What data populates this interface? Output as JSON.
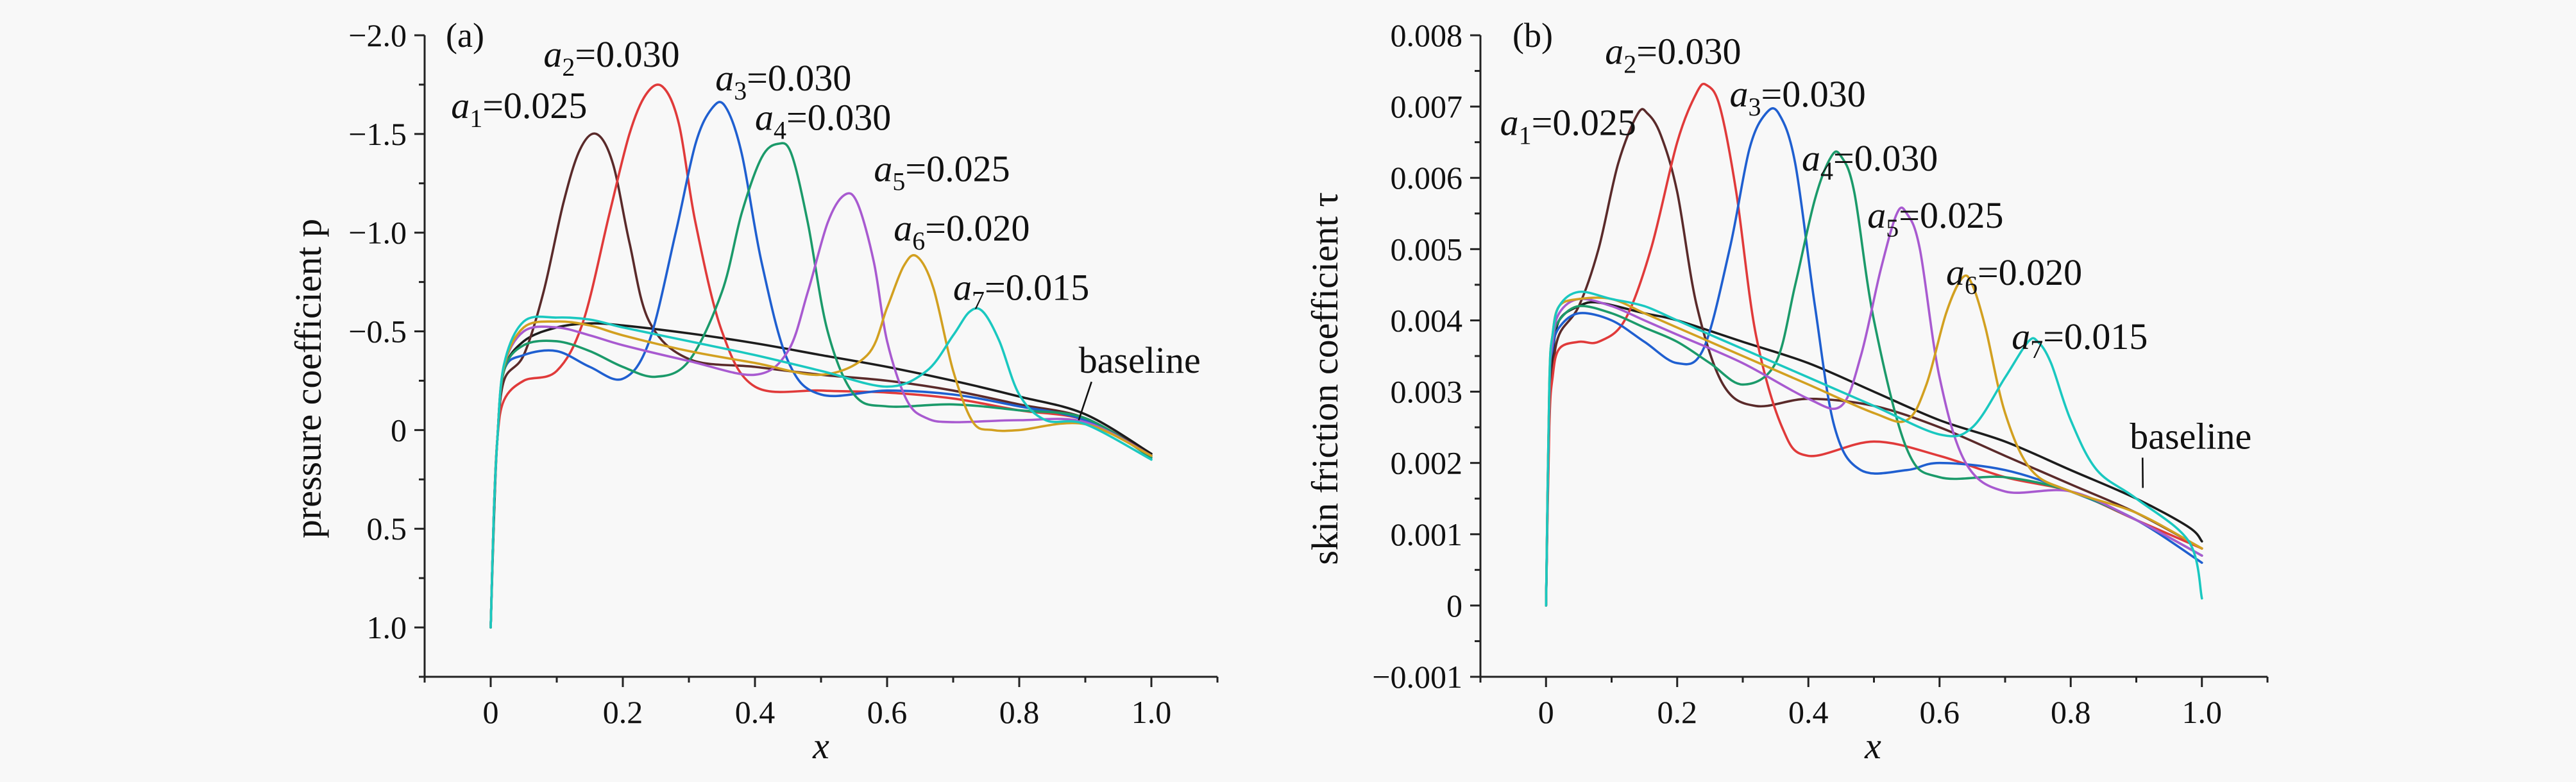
{
  "chart_data": [
    {
      "type": "line",
      "panel_label": "(a)",
      "xlabel": "x",
      "ylabel": "pressure coefficient p",
      "xlim": [
        -0.1,
        1.1
      ],
      "ylim": [
        1.25,
        -2.0
      ],
      "y_inverted": true,
      "xticks": [
        0,
        0.2,
        0.4,
        0.6,
        0.8,
        1.0
      ],
      "xtick_labels": [
        "0",
        "0.2",
        "0.4",
        "0.6",
        "0.8",
        "1.0"
      ],
      "yticks": [
        -2.0,
        -1.5,
        -1.0,
        -0.5,
        0,
        0.5,
        1.0
      ],
      "ytick_labels": [
        "−2.0",
        "−1.5",
        "−1.0",
        "−0.5",
        "0",
        "0.5",
        "1.0"
      ],
      "annotations": [
        {
          "var": "a",
          "sub": "1",
          "value": "=0.025",
          "x": -0.06,
          "y": -1.58
        },
        {
          "var": "a",
          "sub": "2",
          "value": "=0.030",
          "x": 0.08,
          "y": -1.84
        },
        {
          "var": "a",
          "sub": "3",
          "value": "=0.030",
          "x": 0.34,
          "y": -1.72
        },
        {
          "var": "a",
          "sub": "4",
          "value": "=0.030",
          "x": 0.4,
          "y": -1.52
        },
        {
          "var": "a",
          "sub": "5",
          "value": "=0.025",
          "x": 0.58,
          "y": -1.26
        },
        {
          "var": "a",
          "sub": "6",
          "value": "=0.020",
          "x": 0.61,
          "y": -0.96
        },
        {
          "var": "a",
          "sub": "7",
          "value": "=0.015",
          "x": 0.7,
          "y": -0.66
        },
        {
          "text": "baseline",
          "x": 0.89,
          "y": -0.29,
          "leader_to": [
            0.89,
            -0.05
          ]
        }
      ],
      "series": [
        {
          "color": "#1c1c1c",
          "x": [
            0,
            0.005,
            0.01,
            0.02,
            0.05,
            0.1,
            0.15,
            0.2,
            0.3,
            0.4,
            0.5,
            0.6,
            0.7,
            0.8,
            0.9,
            1.0
          ],
          "y": [
            1.0,
            0.45,
            0.05,
            -0.3,
            -0.45,
            -0.52,
            -0.54,
            -0.53,
            -0.49,
            -0.44,
            -0.38,
            -0.32,
            -0.25,
            -0.17,
            -0.08,
            0.12
          ]
        },
        {
          "color": "#5a2a2a",
          "x": [
            0,
            0.005,
            0.01,
            0.02,
            0.05,
            0.08,
            0.11,
            0.135,
            0.16,
            0.185,
            0.21,
            0.24,
            0.3,
            0.4,
            0.5,
            0.6,
            0.7,
            0.8,
            0.9,
            1.0
          ],
          "y": [
            1.0,
            0.4,
            0.05,
            -0.25,
            -0.38,
            -0.7,
            -1.15,
            -1.42,
            -1.5,
            -1.35,
            -0.95,
            -0.55,
            -0.36,
            -0.32,
            -0.28,
            -0.25,
            -0.2,
            -0.13,
            -0.06,
            0.13
          ]
        },
        {
          "color": "#e03a3a",
          "x": [
            0,
            0.005,
            0.01,
            0.02,
            0.05,
            0.1,
            0.14,
            0.18,
            0.21,
            0.235,
            0.26,
            0.285,
            0.31,
            0.35,
            0.4,
            0.5,
            0.6,
            0.7,
            0.8,
            0.9,
            1.0
          ],
          "y": [
            1.0,
            0.4,
            0.05,
            -0.15,
            -0.25,
            -0.3,
            -0.55,
            -1.1,
            -1.5,
            -1.7,
            -1.74,
            -1.55,
            -1.05,
            -0.5,
            -0.22,
            -0.2,
            -0.19,
            -0.16,
            -0.1,
            -0.05,
            0.13
          ]
        },
        {
          "color": "#1f5fd0",
          "x": [
            0,
            0.005,
            0.01,
            0.02,
            0.05,
            0.1,
            0.15,
            0.2,
            0.24,
            0.28,
            0.31,
            0.335,
            0.355,
            0.38,
            0.41,
            0.45,
            0.5,
            0.6,
            0.7,
            0.8,
            0.9,
            1.0
          ],
          "y": [
            1.0,
            0.4,
            0.05,
            -0.3,
            -0.38,
            -0.4,
            -0.32,
            -0.26,
            -0.45,
            -1.0,
            -1.45,
            -1.63,
            -1.64,
            -1.4,
            -0.85,
            -0.35,
            -0.18,
            -0.2,
            -0.18,
            -0.12,
            -0.05,
            0.13
          ]
        },
        {
          "color": "#1b9a6a",
          "x": [
            0,
            0.005,
            0.01,
            0.02,
            0.05,
            0.1,
            0.15,
            0.2,
            0.25,
            0.3,
            0.35,
            0.38,
            0.41,
            0.435,
            0.455,
            0.48,
            0.51,
            0.55,
            0.6,
            0.7,
            0.8,
            0.9,
            1.0
          ],
          "y": [
            1.0,
            0.4,
            0.05,
            -0.3,
            -0.43,
            -0.45,
            -0.4,
            -0.32,
            -0.27,
            -0.35,
            -0.7,
            -1.1,
            -1.38,
            -1.45,
            -1.4,
            -1.05,
            -0.5,
            -0.18,
            -0.12,
            -0.13,
            -0.1,
            -0.06,
            0.14
          ]
        },
        {
          "color": "#a85ad0",
          "x": [
            0,
            0.005,
            0.01,
            0.02,
            0.05,
            0.1,
            0.15,
            0.2,
            0.3,
            0.4,
            0.45,
            0.48,
            0.51,
            0.535,
            0.555,
            0.58,
            0.6,
            0.63,
            0.66,
            0.7,
            0.8,
            0.9,
            1.0
          ],
          "y": [
            1.0,
            0.4,
            0.05,
            -0.32,
            -0.5,
            -0.52,
            -0.48,
            -0.43,
            -0.35,
            -0.28,
            -0.4,
            -0.7,
            -1.05,
            -1.19,
            -1.15,
            -0.85,
            -0.45,
            -0.15,
            -0.06,
            -0.04,
            -0.05,
            -0.04,
            0.13
          ]
        },
        {
          "color": "#d2a020",
          "x": [
            0,
            0.005,
            0.01,
            0.02,
            0.05,
            0.1,
            0.15,
            0.2,
            0.3,
            0.4,
            0.5,
            0.57,
            0.6,
            0.625,
            0.645,
            0.67,
            0.7,
            0.73,
            0.76,
            0.8,
            0.9,
            1.0
          ],
          "y": [
            1.0,
            0.4,
            0.05,
            -0.32,
            -0.52,
            -0.55,
            -0.53,
            -0.48,
            -0.4,
            -0.34,
            -0.28,
            -0.38,
            -0.62,
            -0.83,
            -0.88,
            -0.72,
            -0.3,
            -0.04,
            0.0,
            0.0,
            -0.03,
            0.13
          ]
        },
        {
          "color": "#1ac8c0",
          "x": [
            0,
            0.005,
            0.01,
            0.02,
            0.05,
            0.1,
            0.15,
            0.2,
            0.3,
            0.4,
            0.5,
            0.6,
            0.66,
            0.7,
            0.725,
            0.745,
            0.77,
            0.8,
            0.84,
            0.9,
            1.0
          ],
          "y": [
            1.0,
            0.4,
            0.05,
            -0.33,
            -0.55,
            -0.57,
            -0.56,
            -0.52,
            -0.45,
            -0.38,
            -0.3,
            -0.22,
            -0.3,
            -0.48,
            -0.6,
            -0.6,
            -0.45,
            -0.18,
            -0.05,
            -0.03,
            0.15
          ]
        }
      ]
    },
    {
      "type": "line",
      "panel_label": "(b)",
      "xlabel": "x",
      "ylabel": "skin friction coefficient τ",
      "xlim": [
        -0.1,
        1.1
      ],
      "ylim": [
        -0.001,
        0.008
      ],
      "xticks": [
        0,
        0.2,
        0.4,
        0.6,
        0.8,
        1.0
      ],
      "xtick_labels": [
        "0",
        "0.2",
        "0.4",
        "0.6",
        "0.8",
        "1.0"
      ],
      "yticks": [
        -0.001,
        0,
        0.001,
        0.002,
        0.003,
        0.004,
        0.005,
        0.006,
        0.007,
        0.008
      ],
      "ytick_labels": [
        "−0.001",
        "0",
        "0.001",
        "0.002",
        "0.003",
        "0.004",
        "0.005",
        "0.006",
        "0.007",
        "0.008"
      ],
      "annotations": [
        {
          "var": "a",
          "sub": "1",
          "value": "=0.025",
          "x": -0.07,
          "y": 0.0066
        },
        {
          "var": "a",
          "sub": "2",
          "value": "=0.030",
          "x": 0.09,
          "y": 0.0076
        },
        {
          "var": "a",
          "sub": "3",
          "value": "=0.030",
          "x": 0.28,
          "y": 0.007
        },
        {
          "var": "a",
          "sub": "4",
          "value": "=0.030",
          "x": 0.39,
          "y": 0.0061
        },
        {
          "var": "a",
          "sub": "5",
          "value": "=0.025",
          "x": 0.49,
          "y": 0.0053
        },
        {
          "var": "a",
          "sub": "6",
          "value": "=0.020",
          "x": 0.61,
          "y": 0.0045
        },
        {
          "var": "a",
          "sub": "7",
          "value": "=0.015",
          "x": 0.71,
          "y": 0.0036
        },
        {
          "text": "baseline",
          "x": 0.89,
          "y": 0.0022,
          "leader_to": [
            0.91,
            0.00165
          ]
        }
      ],
      "series": [
        {
          "color": "#1c1c1c",
          "x": [
            0,
            0.005,
            0.01,
            0.02,
            0.05,
            0.08,
            0.15,
            0.2,
            0.3,
            0.4,
            0.5,
            0.6,
            0.7,
            0.8,
            0.9,
            0.98,
            1.0
          ],
          "y": [
            0.0,
            0.0028,
            0.0035,
            0.004,
            0.0042,
            0.00425,
            0.0041,
            0.004,
            0.0037,
            0.0034,
            0.003,
            0.0026,
            0.0023,
            0.0019,
            0.0015,
            0.0011,
            0.0009
          ]
        },
        {
          "color": "#5a2a2a",
          "x": [
            0,
            0.005,
            0.01,
            0.02,
            0.05,
            0.08,
            0.11,
            0.14,
            0.155,
            0.175,
            0.2,
            0.23,
            0.27,
            0.32,
            0.4,
            0.5,
            0.6,
            0.7,
            0.8,
            0.9,
            1.0
          ],
          "y": [
            0.0,
            0.0027,
            0.0033,
            0.0038,
            0.0042,
            0.005,
            0.0062,
            0.0069,
            0.0069,
            0.0066,
            0.0058,
            0.0042,
            0.0031,
            0.0028,
            0.0029,
            0.0028,
            0.0025,
            0.0021,
            0.0017,
            0.0013,
            0.0008
          ]
        },
        {
          "color": "#e03a3a",
          "x": [
            0,
            0.005,
            0.01,
            0.02,
            0.05,
            0.08,
            0.12,
            0.16,
            0.2,
            0.23,
            0.245,
            0.265,
            0.29,
            0.32,
            0.36,
            0.4,
            0.5,
            0.6,
            0.7,
            0.8,
            0.9,
            1.0
          ],
          "y": [
            0.0,
            0.0025,
            0.0032,
            0.0036,
            0.0037,
            0.0037,
            0.004,
            0.005,
            0.0065,
            0.0072,
            0.0073,
            0.007,
            0.0058,
            0.0038,
            0.0025,
            0.0021,
            0.0023,
            0.0021,
            0.0018,
            0.0016,
            0.0012,
            0.0008
          ]
        },
        {
          "color": "#1f5fd0",
          "x": [
            0,
            0.005,
            0.01,
            0.02,
            0.05,
            0.1,
            0.15,
            0.2,
            0.24,
            0.28,
            0.31,
            0.335,
            0.355,
            0.38,
            0.41,
            0.44,
            0.48,
            0.55,
            0.6,
            0.7,
            0.8,
            0.9,
            1.0
          ],
          "y": [
            0.0,
            0.003,
            0.0036,
            0.0039,
            0.0041,
            0.004,
            0.0037,
            0.0034,
            0.0036,
            0.005,
            0.0064,
            0.0069,
            0.0069,
            0.0062,
            0.0042,
            0.0025,
            0.0019,
            0.0019,
            0.002,
            0.0019,
            0.0016,
            0.0012,
            0.0006
          ]
        },
        {
          "color": "#1b9a6a",
          "x": [
            0,
            0.005,
            0.01,
            0.02,
            0.05,
            0.1,
            0.15,
            0.2,
            0.25,
            0.3,
            0.35,
            0.38,
            0.41,
            0.435,
            0.45,
            0.47,
            0.5,
            0.55,
            0.6,
            0.7,
            0.8,
            0.9,
            1.0
          ],
          "y": [
            0.0,
            0.003,
            0.0037,
            0.004,
            0.0042,
            0.0041,
            0.0039,
            0.0037,
            0.0034,
            0.0031,
            0.0034,
            0.0045,
            0.0057,
            0.0063,
            0.0063,
            0.0058,
            0.004,
            0.0022,
            0.0018,
            0.0018,
            0.0016,
            0.0012,
            0.0007
          ]
        },
        {
          "color": "#a85ad0",
          "x": [
            0,
            0.005,
            0.01,
            0.02,
            0.05,
            0.1,
            0.15,
            0.2,
            0.3,
            0.4,
            0.45,
            0.48,
            0.51,
            0.535,
            0.55,
            0.57,
            0.6,
            0.64,
            0.7,
            0.8,
            0.9,
            1.0
          ],
          "y": [
            0.0,
            0.003,
            0.0037,
            0.0041,
            0.0043,
            0.0042,
            0.004,
            0.0038,
            0.0034,
            0.0029,
            0.0028,
            0.0035,
            0.0047,
            0.0055,
            0.0055,
            0.005,
            0.0032,
            0.002,
            0.0016,
            0.0016,
            0.0012,
            0.0007
          ]
        },
        {
          "color": "#d2a020",
          "x": [
            0,
            0.005,
            0.01,
            0.02,
            0.05,
            0.1,
            0.15,
            0.2,
            0.3,
            0.4,
            0.5,
            0.55,
            0.58,
            0.61,
            0.635,
            0.65,
            0.67,
            0.7,
            0.74,
            0.8,
            0.9,
            1.0
          ],
          "y": [
            0.0,
            0.0031,
            0.0038,
            0.0042,
            0.0043,
            0.0043,
            0.0041,
            0.0039,
            0.0035,
            0.0031,
            0.0027,
            0.0026,
            0.0031,
            0.0041,
            0.0046,
            0.0045,
            0.0039,
            0.0027,
            0.0019,
            0.0016,
            0.0013,
            0.0008
          ]
        },
        {
          "color": "#1ac8c0",
          "x": [
            0,
            0.005,
            0.01,
            0.02,
            0.05,
            0.1,
            0.15,
            0.2,
            0.3,
            0.4,
            0.5,
            0.6,
            0.65,
            0.7,
            0.735,
            0.75,
            0.77,
            0.8,
            0.84,
            0.9,
            0.98,
            1.0
          ],
          "y": [
            0.0,
            0.0031,
            0.0038,
            0.0042,
            0.0044,
            0.0043,
            0.0042,
            0.004,
            0.0036,
            0.0032,
            0.0028,
            0.0024,
            0.0025,
            0.0032,
            0.0037,
            0.0037,
            0.0034,
            0.0026,
            0.0019,
            0.0015,
            0.0009,
            0.0001
          ]
        }
      ]
    }
  ]
}
